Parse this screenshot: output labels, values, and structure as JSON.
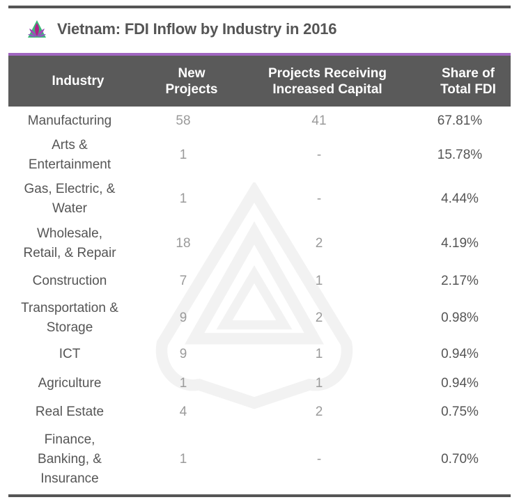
{
  "title": "Vietnam: FDI Inflow by Industry in 2016",
  "logo_icon": "lotus-icon",
  "colors": {
    "header_bg": "#5a5a5a",
    "accent": "#a066c0",
    "rule": "#555555"
  },
  "columns": [
    "Industry",
    "New Projects",
    "Projects Receiving Increased Capital",
    "Share of Total FDI"
  ],
  "column_lines": [
    [
      "Industry"
    ],
    [
      "New",
      "Projects"
    ],
    [
      "Projects Receiving",
      "Increased Capital"
    ],
    [
      "Share of",
      "Total FDI"
    ]
  ],
  "rows": [
    {
      "industry": "Manufacturing",
      "new_projects": "58",
      "increased_capital": "41",
      "share": "67.81%"
    },
    {
      "industry": "Arts & Entertainment",
      "new_projects": "1",
      "increased_capital": "-",
      "share": "15.78%"
    },
    {
      "industry": "Gas, Electric, & Water",
      "new_projects": "1",
      "increased_capital": "-",
      "share": "4.44%"
    },
    {
      "industry": "Wholesale, Retail, & Repair",
      "new_projects": "18",
      "increased_capital": "2",
      "share": "4.19%"
    },
    {
      "industry": "Construction",
      "new_projects": "7",
      "increased_capital": "1",
      "share": "2.17%"
    },
    {
      "industry": "Transportation & Storage",
      "new_projects": "9",
      "increased_capital": "2",
      "share": "0.98%"
    },
    {
      "industry": "ICT",
      "new_projects": "9",
      "increased_capital": "1",
      "share": "0.94%"
    },
    {
      "industry": "Agriculture",
      "new_projects": "1",
      "increased_capital": "1",
      "share": "0.94%"
    },
    {
      "industry": "Real Estate",
      "new_projects": "4",
      "increased_capital": "2",
      "share": "0.75%"
    },
    {
      "industry": "Finance, Banking, & Insurance",
      "new_projects": "1",
      "increased_capital": "-",
      "share": "0.70%"
    }
  ]
}
